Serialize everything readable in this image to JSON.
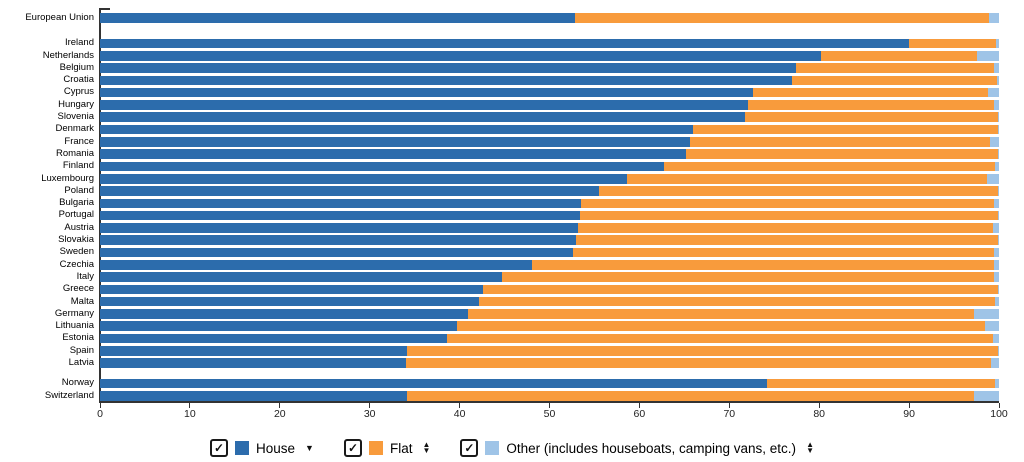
{
  "chart_data": {
    "type": "bar",
    "orientation": "horizontal",
    "stacked": true,
    "unit": "percent",
    "title": "",
    "xlabel": "",
    "ylabel": "",
    "xlim": [
      0,
      100
    ],
    "x_ticks": [
      0,
      10,
      20,
      30,
      40,
      50,
      60,
      70,
      80,
      90,
      100
    ],
    "grid": false,
    "legend_position": "bottom",
    "series_names": [
      "House",
      "Flat",
      "Other"
    ],
    "colors": {
      "house": "#2c6cac",
      "flat": "#f89b3c",
      "other": "#9fc4e7"
    },
    "rows": [
      {
        "label": "European Union",
        "group": "eu-aggregate",
        "house": 52.8,
        "flat": 46.1,
        "other": 1.1
      },
      {
        "label": "Ireland",
        "group": "members",
        "house": 90.0,
        "flat": 9.7,
        "other": 0.3
      },
      {
        "label": "Netherlands",
        "group": "members",
        "house": 80.2,
        "flat": 17.3,
        "other": 2.5
      },
      {
        "label": "Belgium",
        "group": "members",
        "house": 77.4,
        "flat": 22.0,
        "other": 0.6
      },
      {
        "label": "Croatia",
        "group": "members",
        "house": 77.0,
        "flat": 22.8,
        "other": 0.2
      },
      {
        "label": "Cyprus",
        "group": "members",
        "house": 72.6,
        "flat": 26.2,
        "other": 1.2
      },
      {
        "label": "Hungary",
        "group": "members",
        "house": 72.1,
        "flat": 27.3,
        "other": 0.6
      },
      {
        "label": "Slovenia",
        "group": "members",
        "house": 71.7,
        "flat": 28.2,
        "other": 0.1
      },
      {
        "label": "Denmark",
        "group": "members",
        "house": 66.0,
        "flat": 33.9,
        "other": 0.1
      },
      {
        "label": "France",
        "group": "members",
        "house": 65.6,
        "flat": 33.4,
        "other": 1.0
      },
      {
        "label": "Romania",
        "group": "members",
        "house": 65.2,
        "flat": 34.7,
        "other": 0.1
      },
      {
        "label": "Finland",
        "group": "members",
        "house": 62.7,
        "flat": 36.8,
        "other": 0.5
      },
      {
        "label": "Luxembourg",
        "group": "members",
        "house": 58.6,
        "flat": 40.1,
        "other": 1.3
      },
      {
        "label": "Poland",
        "group": "members",
        "house": 55.5,
        "flat": 44.4,
        "other": 0.1
      },
      {
        "label": "Bulgaria",
        "group": "members",
        "house": 53.5,
        "flat": 45.9,
        "other": 0.6
      },
      {
        "label": "Portugal",
        "group": "members",
        "house": 53.4,
        "flat": 46.5,
        "other": 0.1
      },
      {
        "label": "Austria",
        "group": "members",
        "house": 53.2,
        "flat": 46.1,
        "other": 0.7
      },
      {
        "label": "Slovakia",
        "group": "members",
        "house": 52.9,
        "flat": 47.0,
        "other": 0.1
      },
      {
        "label": "Sweden",
        "group": "members",
        "house": 52.6,
        "flat": 46.9,
        "other": 0.5
      },
      {
        "label": "Czechia",
        "group": "members",
        "house": 48.1,
        "flat": 51.3,
        "other": 0.6
      },
      {
        "label": "Italy",
        "group": "members",
        "house": 44.7,
        "flat": 54.7,
        "other": 0.6
      },
      {
        "label": "Greece",
        "group": "members",
        "house": 42.6,
        "flat": 57.3,
        "other": 0.1
      },
      {
        "label": "Malta",
        "group": "members",
        "house": 42.2,
        "flat": 57.3,
        "other": 0.5
      },
      {
        "label": "Germany",
        "group": "members",
        "house": 40.9,
        "flat": 56.3,
        "other": 2.8
      },
      {
        "label": "Lithuania",
        "group": "members",
        "house": 39.7,
        "flat": 58.7,
        "other": 1.6
      },
      {
        "label": "Estonia",
        "group": "members",
        "house": 38.6,
        "flat": 60.7,
        "other": 0.7
      },
      {
        "label": "Spain",
        "group": "members",
        "house": 34.1,
        "flat": 65.8,
        "other": 0.1
      },
      {
        "label": "Latvia",
        "group": "members",
        "house": 34.0,
        "flat": 65.1,
        "other": 0.9
      },
      {
        "label": "Norway",
        "group": "efta",
        "house": 74.2,
        "flat": 25.4,
        "other": 0.4
      },
      {
        "label": "Switzerland",
        "group": "efta",
        "house": 34.1,
        "flat": 63.1,
        "other": 2.8
      }
    ]
  },
  "legend": {
    "checkmark": "✓",
    "items": [
      {
        "label": "House",
        "color_key": "house",
        "checked": true,
        "sort_indicator": "descending"
      },
      {
        "label": "Flat",
        "color_key": "flat",
        "checked": true,
        "sort_indicator": "toggle"
      },
      {
        "label": "Other (includes houseboats, camping vans, etc.)",
        "color_key": "other",
        "checked": true,
        "sort_indicator": "toggle"
      }
    ]
  },
  "icons": {
    "sort_down": "▼",
    "sort_up": "▲"
  }
}
